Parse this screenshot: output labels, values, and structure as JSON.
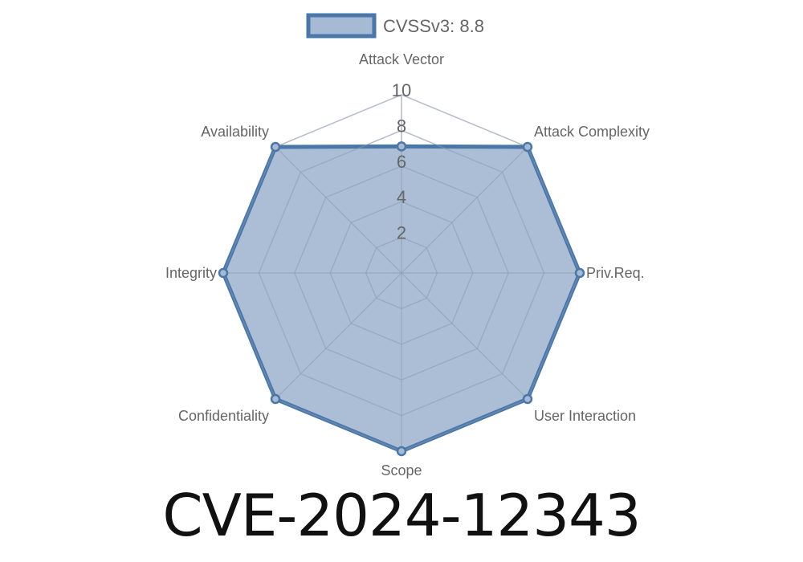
{
  "chart_data": {
    "type": "radar",
    "axes": [
      "Attack Vector",
      "Attack Complexity",
      "Priv.Req.",
      "User Interaction",
      "Scope",
      "Confidentiality",
      "Integrity",
      "Availability"
    ],
    "series": [
      {
        "name": "CVSSv3: 8.8",
        "values": [
          7.1,
          10,
          10,
          10,
          10,
          10,
          10,
          10
        ]
      }
    ],
    "r_range": [
      0,
      10
    ],
    "r_ticks": [
      "2",
      "4",
      "6",
      "8",
      "10"
    ],
    "legend_position": "top",
    "grid": true,
    "colors": {
      "line": "#4a76a8",
      "fill": "#a7bad3",
      "grid": "#e0e0e0"
    }
  },
  "title": "CVE-2024-12343"
}
